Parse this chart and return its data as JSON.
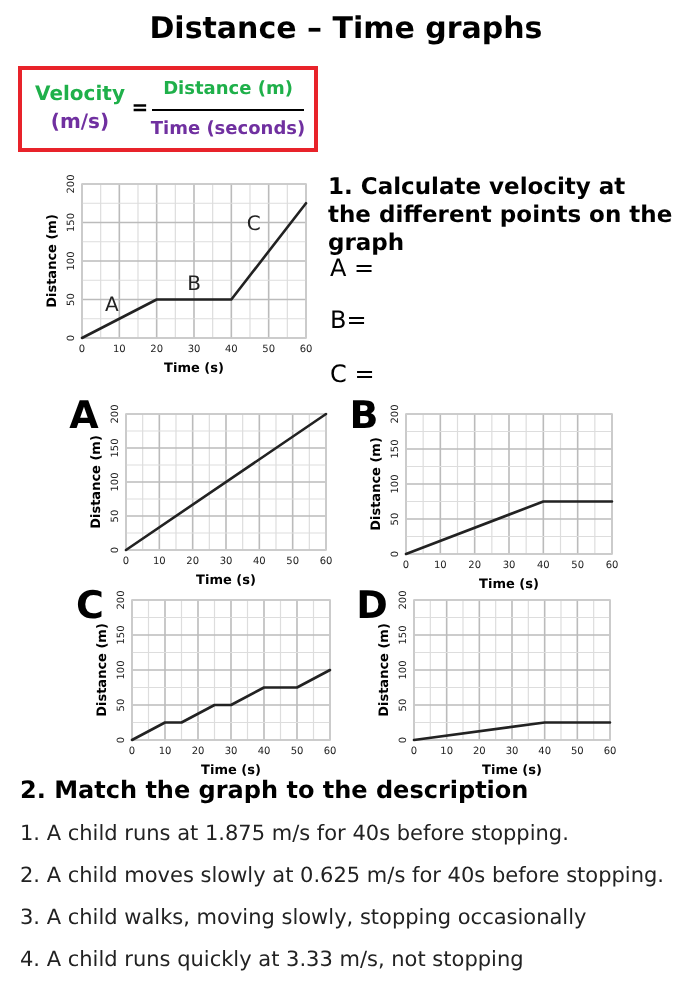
{
  "chart_data": [
    {
      "type": "other",
      "title": "Distance – Time graphs",
      "annotations": [
        "Velocity",
        "(m/s)",
        "=",
        "Distance (m)",
        "Time (seconds)",
        "1. Calculate velocity at the different points on the graph",
        "A =",
        "B=",
        "C =",
        "2. Match the graph to the description",
        "1. A child runs at 1.875 m/s for 40s before stopping.",
        "2. A child moves slowly at 0.625 m/s for 40s before stopping.",
        "3. A child walks, moving slowly, stopping occasionally",
        "4. A child runs quickly at 3.33 m/s, not stopping"
      ]
    },
    {
      "type": "line",
      "xlabel": "Time (s)",
      "ylabel": "Distance (m)",
      "x": [
        0,
        20,
        40,
        60
      ],
      "values": [
        0,
        50,
        50,
        175
      ],
      "color": "#222222",
      "xlim": [
        0,
        60
      ],
      "ylim": [
        0,
        200
      ],
      "xticks": [
        0,
        {
          "value": 5,
          "label": null
        },
        10,
        {
          "value": 15,
          "label": null
        },
        20,
        {
          "value": 25,
          "label": null
        },
        30,
        {
          "value": 35,
          "label": null
        },
        40,
        {
          "value": 45,
          "label": null
        },
        50,
        {
          "value": 55,
          "label": null
        },
        60
      ],
      "yticks": [
        0,
        {
          "value": 25,
          "label": null
        },
        50,
        {
          "value": 75,
          "label": null
        },
        100,
        {
          "value": 125,
          "label": null
        },
        150,
        {
          "value": 175,
          "label": null
        },
        200
      ],
      "grid": true,
      "annotations": [
        "A",
        "B",
        "C"
      ]
    },
    {
      "type": "line",
      "title": "A",
      "xlabel": "Time (s)",
      "ylabel": "Distance (m)",
      "x": [
        0,
        60
      ],
      "values": [
        0,
        200
      ],
      "color": "#222222",
      "xlim": [
        0,
        60
      ],
      "ylim": [
        0,
        200
      ],
      "xticks": [
        0,
        {
          "value": 5,
          "label": null
        },
        10,
        {
          "value": 15,
          "label": null
        },
        20,
        {
          "value": 25,
          "label": null
        },
        30,
        {
          "value": 35,
          "label": null
        },
        40,
        {
          "value": 45,
          "label": null
        },
        50,
        {
          "value": 55,
          "label": null
        },
        60
      ],
      "yticks": [
        0,
        {
          "value": 25,
          "label": null
        },
        50,
        {
          "value": 75,
          "label": null
        },
        100,
        {
          "value": 125,
          "label": null
        },
        150,
        {
          "value": 175,
          "label": null
        },
        200
      ],
      "grid": true
    },
    {
      "type": "line",
      "title": "B",
      "xlabel": "Time (s)",
      "ylabel": "Distance (m)",
      "x": [
        0,
        40,
        60
      ],
      "values": [
        0,
        75,
        75
      ],
      "color": "#222222",
      "xlim": [
        0,
        60
      ],
      "ylim": [
        0,
        200
      ],
      "xticks": [
        0,
        {
          "value": 5,
          "label": null
        },
        10,
        {
          "value": 15,
          "label": null
        },
        20,
        {
          "value": 25,
          "label": null
        },
        30,
        {
          "value": 35,
          "label": null
        },
        40,
        {
          "value": 45,
          "label": null
        },
        50,
        {
          "value": 55,
          "label": null
        },
        60
      ],
      "yticks": [
        0,
        {
          "value": 25,
          "label": null
        },
        50,
        {
          "value": 75,
          "label": null
        },
        100,
        {
          "value": 125,
          "label": null
        },
        150,
        {
          "value": 175,
          "label": null
        },
        200
      ],
      "grid": true
    },
    {
      "type": "line",
      "title": "C",
      "xlabel": "Time (s)",
      "ylabel": "Distance (m)",
      "x": [
        0,
        10,
        15,
        25,
        30,
        40,
        50,
        60
      ],
      "values": [
        0,
        25,
        25,
        50,
        50,
        75,
        75,
        100
      ],
      "color": "#222222",
      "xlim": [
        0,
        60
      ],
      "ylim": [
        0,
        200
      ],
      "xticks": [
        0,
        {
          "value": 5,
          "label": null
        },
        10,
        {
          "value": 15,
          "label": null
        },
        20,
        {
          "value": 25,
          "label": null
        },
        30,
        {
          "value": 35,
          "label": null
        },
        40,
        {
          "value": 45,
          "label": null
        },
        50,
        {
          "value": 55,
          "label": null
        },
        60
      ],
      "yticks": [
        0,
        {
          "value": 25,
          "label": null
        },
        50,
        {
          "value": 75,
          "label": null
        },
        100,
        {
          "value": 125,
          "label": null
        },
        150,
        {
          "value": 175,
          "label": null
        },
        200
      ],
      "grid": true
    },
    {
      "type": "line",
      "title": "D",
      "xlabel": "Time (s)",
      "ylabel": "Distance (m)",
      "x": [
        0,
        40,
        60
      ],
      "values": [
        0,
        25,
        25
      ],
      "color": "#222222",
      "xlim": [
        0,
        60
      ],
      "ylim": [
        0,
        200
      ],
      "xticks": [
        0,
        {
          "value": 5,
          "label": null
        },
        10,
        {
          "value": 15,
          "label": null
        },
        20,
        {
          "value": 25,
          "label": null
        },
        30,
        {
          "value": 35,
          "label": null
        },
        40,
        {
          "value": 45,
          "label": null
        },
        50,
        {
          "value": 55,
          "label": null
        },
        60
      ],
      "yticks": [
        0,
        {
          "value": 25,
          "label": null
        },
        50,
        {
          "value": 75,
          "label": null
        },
        100,
        {
          "value": 125,
          "label": null
        },
        150,
        {
          "value": 175,
          "label": null
        },
        200
      ],
      "grid": true
    }
  ]
}
